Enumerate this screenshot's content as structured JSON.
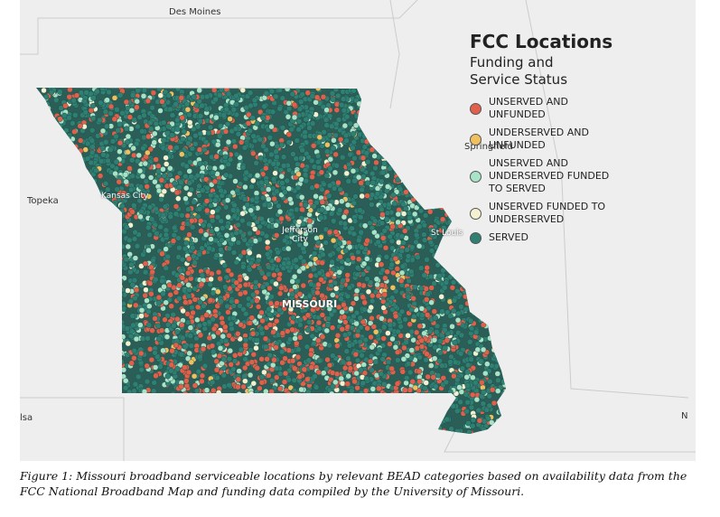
{
  "map": {
    "places": [
      "Des Moines",
      "Topeka",
      "Kansas City",
      "Jefferson City",
      "St Louis",
      "Springfield",
      "MISSOURI",
      "lsa",
      "N"
    ],
    "legend": {
      "title": "FCC Locations",
      "subtitle": "Funding and Service Status",
      "items": [
        {
          "label": "UNSERVED AND UNFUNDED",
          "color": "#e0604c"
        },
        {
          "label": "UNDERSERVED AND UNFUNDED",
          "color": "#f0c060"
        },
        {
          "label": "UNSERVED AND UNDERSERVED FUNDED TO SERVED",
          "color": "#a8e3c8"
        },
        {
          "label": "UNSERVED FUNDED TO UNDERSERVED",
          "color": "#f3f1d0"
        },
        {
          "label": "SERVED",
          "color": "#2f7f73"
        }
      ]
    }
  },
  "caption": "Figure 1: Missouri broadband serviceable locations by relevant BEAD categories based on availability data from the FCC National Broadband Map and funding data compiled by the University of Missouri."
}
